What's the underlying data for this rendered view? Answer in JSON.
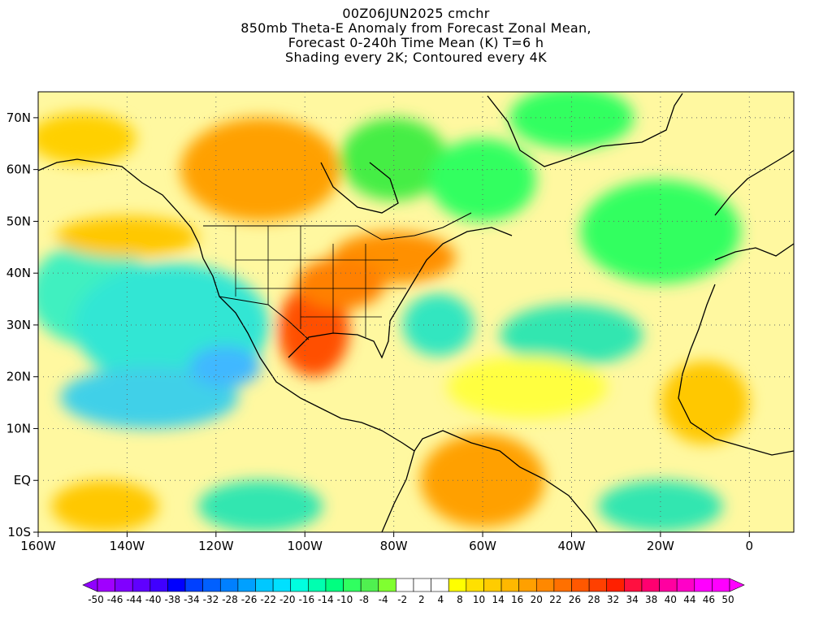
{
  "title": {
    "line1": "00Z06JUN2025 cmchr",
    "line2": "850mb Theta-E Anomaly from Forecast Zonal Mean,",
    "line3": "Forecast 0-240h Time Mean (K) T=6 h",
    "line4": "Shading every 2K; Contoured every 4K"
  },
  "map": {
    "lon_range": [
      -160,
      10
    ],
    "lat_range": [
      -10,
      75
    ],
    "lon_ticks": [
      {
        "value": -160,
        "label": "160W"
      },
      {
        "value": -140,
        "label": "140W"
      },
      {
        "value": -120,
        "label": "120W"
      },
      {
        "value": -100,
        "label": "100W"
      },
      {
        "value": -80,
        "label": "80W"
      },
      {
        "value": -60,
        "label": "60W"
      },
      {
        "value": -40,
        "label": "40W"
      },
      {
        "value": -20,
        "label": "20W"
      },
      {
        "value": 0,
        "label": "0"
      }
    ],
    "lat_ticks": [
      {
        "value": 70,
        "label": "70N"
      },
      {
        "value": 60,
        "label": "60N"
      },
      {
        "value": 50,
        "label": "50N"
      },
      {
        "value": 40,
        "label": "40N"
      },
      {
        "value": 30,
        "label": "30N"
      },
      {
        "value": 20,
        "label": "20N"
      },
      {
        "value": 10,
        "label": "10N"
      },
      {
        "value": 0,
        "label": "EQ"
      },
      {
        "value": -10,
        "label": "10S"
      }
    ]
  },
  "colorbar": {
    "colors": [
      "#a000ff",
      "#8000ff",
      "#6000ff",
      "#4000ff",
      "#0000ff",
      "#0040ff",
      "#0060ff",
      "#0080ff",
      "#00a0ff",
      "#00c8ff",
      "#00e0ff",
      "#00ffe0",
      "#00ffb0",
      "#00ff80",
      "#30ff60",
      "#50f050",
      "#80ff30",
      "#ffffff",
      "#ffffff",
      "#ffffff",
      "#ffff00",
      "#ffe000",
      "#ffcc00",
      "#ffb800",
      "#ffa000",
      "#ff8800",
      "#ff7000",
      "#ff5800",
      "#ff4000",
      "#ff2000",
      "#ff1040",
      "#ff0070",
      "#ff00a0",
      "#ff00c8",
      "#ff00ff",
      "#ff00ff"
    ],
    "labels": [
      "-50",
      "-46",
      "-44",
      "-40",
      "-38",
      "-34",
      "-32",
      "-28",
      "-26",
      "-22",
      "-20",
      "-16",
      "-14",
      "-10",
      "-8",
      "-4",
      "-2",
      "2",
      "4",
      "8",
      "10",
      "14",
      "16",
      "20",
      "22",
      "26",
      "28",
      "32",
      "34",
      "38",
      "40",
      "44",
      "46",
      "50"
    ]
  },
  "anomaly_regions": [
    {
      "lon": -148,
      "lat": 36,
      "rx": 14,
      "ry": 10,
      "color": "#3ff0c0"
    },
    {
      "lon": -130,
      "lat": 30,
      "rx": 22,
      "ry": 12,
      "color": "#33e6d4"
    },
    {
      "lon": -135,
      "lat": 16,
      "rx": 20,
      "ry": 6,
      "color": "#3fd0e8"
    },
    {
      "lon": -118,
      "lat": 22,
      "rx": 8,
      "ry": 4,
      "color": "#40b8ff"
    },
    {
      "lon": -140,
      "lat": 47,
      "rx": 16,
      "ry": 4,
      "color": "#ffc800"
    },
    {
      "lon": -110,
      "lat": 60,
      "rx": 18,
      "ry": 10,
      "color": "#ffa000"
    },
    {
      "lon": -150,
      "lat": 66,
      "rx": 12,
      "ry": 5,
      "color": "#ffd000"
    },
    {
      "lon": -80,
      "lat": 62,
      "rx": 12,
      "ry": 8,
      "color": "#44ee44"
    },
    {
      "lon": -60,
      "lat": 58,
      "rx": 12,
      "ry": 8,
      "color": "#30ff60"
    },
    {
      "lon": -40,
      "lat": 70,
      "rx": 14,
      "ry": 6,
      "color": "#30ff60"
    },
    {
      "lon": -20,
      "lat": 48,
      "rx": 18,
      "ry": 10,
      "color": "#30ff60"
    },
    {
      "lon": -80,
      "lat": 43,
      "rx": 14,
      "ry": 5,
      "color": "#ff9000"
    },
    {
      "lon": -98,
      "lat": 29,
      "rx": 8,
      "ry": 9,
      "color": "#ff5000"
    },
    {
      "lon": -92,
      "lat": 38,
      "rx": 10,
      "ry": 5,
      "color": "#ff8000"
    },
    {
      "lon": -70,
      "lat": 30,
      "rx": 8,
      "ry": 6,
      "color": "#33e6c0"
    },
    {
      "lon": -40,
      "lat": 28,
      "rx": 16,
      "ry": 6,
      "color": "#33e6b0"
    },
    {
      "lon": -50,
      "lat": 18,
      "rx": 18,
      "ry": 6,
      "color": "#ffff40"
    },
    {
      "lon": -60,
      "lat": 0,
      "rx": 14,
      "ry": 9,
      "color": "#ffa000"
    },
    {
      "lon": -10,
      "lat": 15,
      "rx": 10,
      "ry": 8,
      "color": "#ffc800"
    },
    {
      "lon": -145,
      "lat": -5,
      "rx": 12,
      "ry": 5,
      "color": "#ffc800"
    },
    {
      "lon": -110,
      "lat": -5,
      "rx": 14,
      "ry": 5,
      "color": "#33e6b0"
    },
    {
      "lon": -20,
      "lat": -5,
      "rx": 14,
      "ry": 5,
      "color": "#33e6b0"
    }
  ]
}
